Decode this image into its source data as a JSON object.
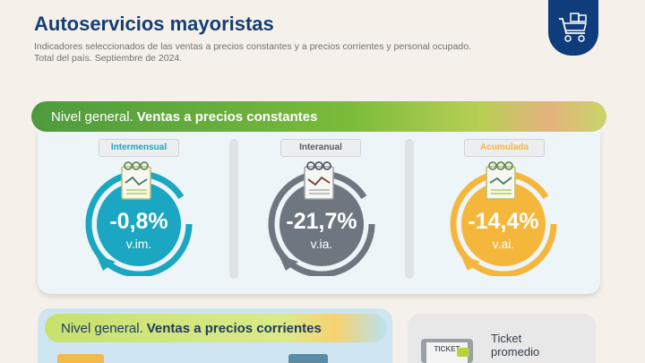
{
  "header": {
    "title": "Autoservicios mayoristas",
    "subtitle_line1": "Indicadores seleccionados de las ventas a precios constantes y a precios corrientes y personal ocupado.",
    "subtitle_line2": "Total del país. Septiembre de 2024."
  },
  "logo": {
    "icon": "shopping-cart-icon"
  },
  "section_constantes": {
    "label_light": "Nivel general.",
    "label_bold": "Ventas a precios constantes",
    "indicators": [
      {
        "tag": "Intermensual",
        "value": "-0,8%",
        "unit": "v.im.",
        "color": "#1ba6c1"
      },
      {
        "tag": "Interanual",
        "value": "-21,7%",
        "unit": "v.ia.",
        "color": "#6e7780"
      },
      {
        "tag": "Acumulada",
        "value": "-14,4%",
        "unit": "v.ai.",
        "color": "#f5b63c"
      }
    ]
  },
  "section_corrientes": {
    "label_light": "Nivel general.",
    "label_bold": "Ventas a precios corrientes"
  },
  "ticket_card": {
    "icon_text": "TICKET",
    "label_line1": "Ticket",
    "label_line2": "promedio"
  }
}
